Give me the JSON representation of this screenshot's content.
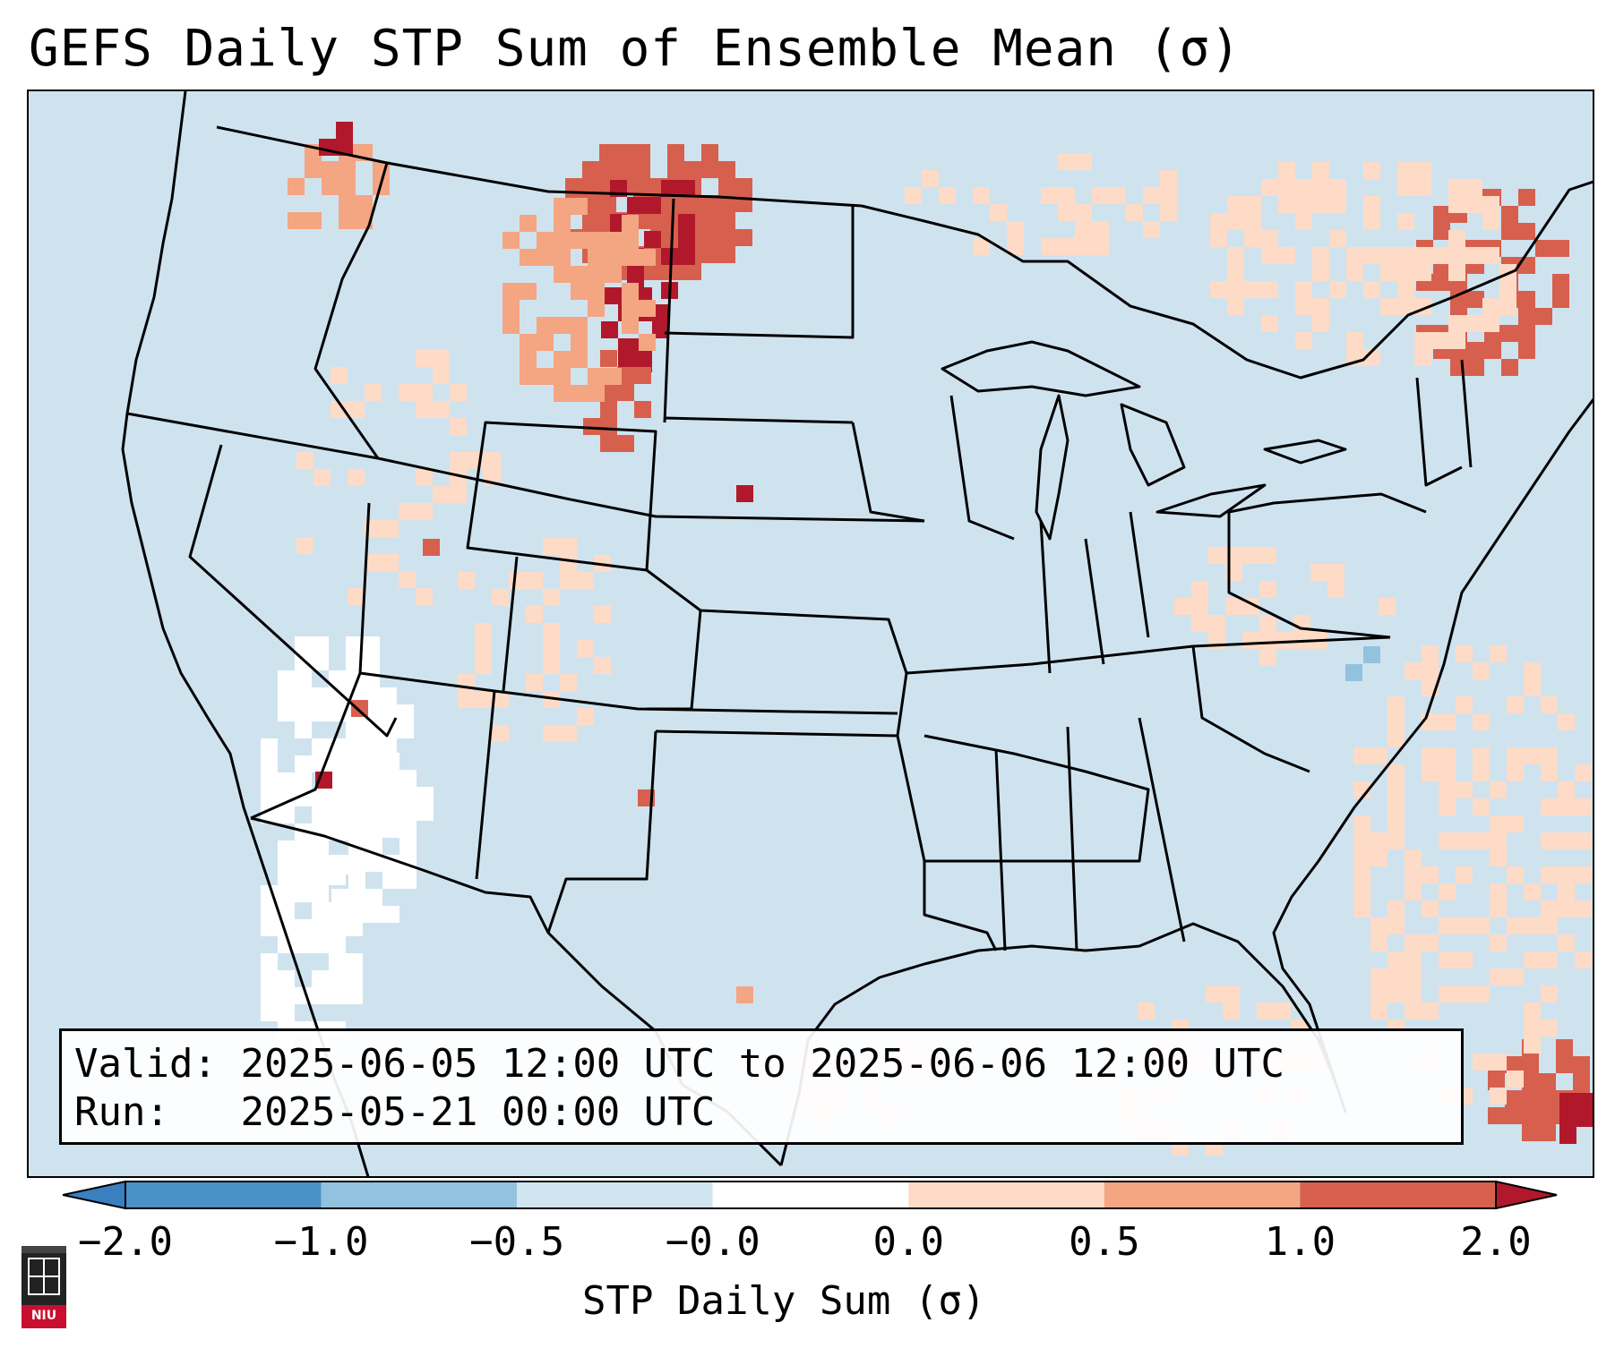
{
  "title": "GEFS Daily STP Sum of Ensemble Mean (σ)",
  "info_box": {
    "valid_label": "Valid:",
    "valid_value": "2025-06-05 12:00 UTC to 2025-06-06 12:00 UTC",
    "run_label": "Run:",
    "run_value": "2025-05-21 00:00 UTC"
  },
  "colorbar": {
    "label": "STP Daily Sum (σ)",
    "ticks": [
      "−2.0",
      "−1.0",
      "−0.5",
      "−0.0",
      "0.0",
      "0.5",
      "1.0",
      "2.0"
    ],
    "colors": {
      "extend_low": "#3a7fbf",
      "bin_-2_-1": "#4a91c7",
      "bin_-1_-0.5": "#92c2de",
      "bin_-0.5_-0": "#d1e5f0",
      "bin_-0_0": "#ffffff",
      "bin_0_0.5": "#fddbc7",
      "bin_0.5_1": "#f4a582",
      "bin_1_2": "#d6604d",
      "extend_high": "#b2182b"
    }
  },
  "map": {
    "background_color": "#cfe3ef",
    "region": "CONUS",
    "hotspots": [
      {
        "name": "montana-north-dakota",
        "value": 2.0
      },
      {
        "name": "wyoming-northeast",
        "value": 2.0
      },
      {
        "name": "pacific-northwest",
        "value": 1.5
      },
      {
        "name": "new-england-quebec",
        "value": 1.2
      },
      {
        "name": "caribbean-east",
        "value": 1.5
      },
      {
        "name": "gulf-of-california",
        "value": 2.0
      }
    ]
  },
  "logo": {
    "text": "NIU"
  }
}
